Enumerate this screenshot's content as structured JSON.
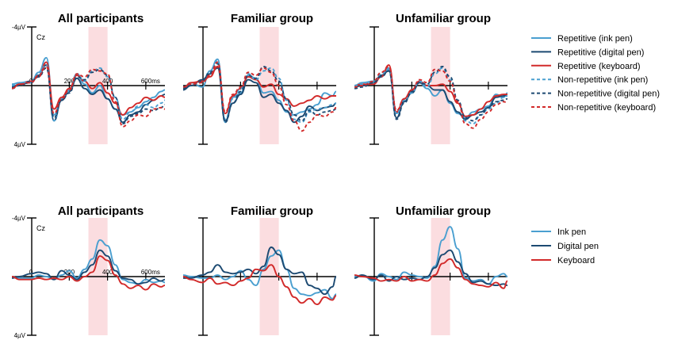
{
  "colors": {
    "ink": "#4a9fd0",
    "digital": "#1c4a72",
    "keyboard": "#d22a2a",
    "window": "#fbdde0"
  },
  "chart_data": [
    {
      "type": "line",
      "row": "top",
      "panels": [
        {
          "title": "All participants",
          "channel": "Cz",
          "tick_labels": [
            "0",
            "200",
            "400",
            "600ms"
          ],
          "ymin_label": "-4µV",
          "ymax_label": "4µV"
        },
        {
          "title": "Familiar group"
        },
        {
          "title": "Unfamiliar group"
        }
      ],
      "x_range_ms": [
        -100,
        700
      ],
      "y_range_uv": [
        -4,
        4
      ],
      "y_orientation": "negative up",
      "analysis_window_ms": [
        300,
        400
      ],
      "legend": [
        "Repetitive (ink pen)",
        "Repetitive (digital pen)",
        "Repetitive (keyboard)",
        "Non-repetitive (ink pen)",
        "Non-repetitive (digital pen)",
        "Non-repetitive (keyboard)"
      ],
      "series_color": [
        "ink",
        "digital",
        "keyboard",
        "ink",
        "digital",
        "keyboard"
      ],
      "series_dashed": [
        false,
        false,
        false,
        true,
        true,
        true
      ],
      "x": [
        -100,
        -60,
        0,
        40,
        80,
        120,
        160,
        200,
        240,
        280,
        320,
        360,
        400,
        440,
        480,
        520,
        560,
        600,
        640,
        680,
        700
      ],
      "panel_series": [
        [
          [
            -0.1,
            -0.2,
            -0.3,
            -0.9,
            -1.9,
            2.0,
            0.9,
            0.3,
            -0.8,
            -0.1,
            0.5,
            0.0,
            0.9,
            1.6,
            2.0,
            1.8,
            1.5,
            1.1,
            0.8,
            0.4,
            0.3
          ],
          [
            0.1,
            -0.1,
            -0.2,
            -0.7,
            -1.4,
            2.4,
            1.0,
            0.4,
            -0.5,
            0.2,
            0.6,
            0.3,
            0.9,
            1.6,
            2.5,
            2.0,
            1.8,
            1.3,
            1.0,
            0.7,
            0.6
          ],
          [
            0.2,
            -0.1,
            -0.3,
            -0.6,
            -1.6,
            1.6,
            0.8,
            0.2,
            -0.7,
            -0.3,
            0.2,
            -0.2,
            0.5,
            1.2,
            2.0,
            1.5,
            1.2,
            0.8,
            1.0,
            0.7,
            0.8
          ],
          [
            0.0,
            -0.2,
            -0.2,
            -0.8,
            -1.4,
            2.4,
            0.9,
            0.4,
            -0.8,
            -0.3,
            -1.0,
            -1.2,
            -0.6,
            0.8,
            2.3,
            1.8,
            1.4,
            1.3,
            1.5,
            1.2,
            1.0
          ],
          [
            0.2,
            0.0,
            -0.3,
            -0.6,
            -1.2,
            2.2,
            1.0,
            0.5,
            -0.6,
            -0.4,
            -0.9,
            -1.1,
            -0.7,
            0.8,
            2.6,
            2.1,
            1.9,
            1.6,
            1.7,
            1.5,
            1.3
          ],
          [
            0.2,
            -0.1,
            -0.2,
            -0.7,
            -1.3,
            1.9,
            0.9,
            0.3,
            -0.8,
            -0.6,
            -1.1,
            -1.0,
            -0.8,
            1.1,
            2.8,
            2.4,
            2.0,
            2.1,
            1.6,
            1.5,
            1.6
          ]
        ],
        [
          [
            0.2,
            -0.2,
            0.1,
            -1.0,
            -1.8,
            2.5,
            0.8,
            0.5,
            -0.7,
            -0.5,
            0.5,
            0.4,
            1.0,
            1.8,
            2.0,
            1.8,
            1.6,
            1.3,
            0.5,
            0.7,
            0.4
          ],
          [
            0.3,
            0.0,
            -0.4,
            -0.8,
            -1.2,
            2.4,
            1.2,
            0.6,
            -0.4,
            -0.2,
            0.8,
            0.6,
            1.2,
            1.7,
            2.5,
            2.1,
            1.4,
            1.7,
            1.5,
            1.4,
            1.2
          ],
          [
            0.2,
            -0.2,
            -0.3,
            -0.6,
            -1.3,
            1.9,
            0.7,
            0.2,
            -0.6,
            -0.4,
            0.1,
            -0.1,
            0.6,
            0.9,
            1.4,
            1.2,
            1.0,
            0.7,
            0.9,
            0.7,
            0.7
          ],
          [
            0.1,
            -0.1,
            -0.2,
            -1.0,
            -1.7,
            2.3,
            0.9,
            0.2,
            -0.8,
            -0.4,
            -1.0,
            -1.2,
            -0.5,
            1.0,
            2.3,
            2.5,
            1.8,
            1.6,
            1.5,
            1.3,
            1.2
          ],
          [
            0.2,
            0.0,
            -0.3,
            -0.9,
            -1.5,
            2.5,
            1.2,
            0.4,
            -0.7,
            -0.5,
            -1.3,
            -1.0,
            -0.3,
            0.9,
            2.0,
            2.4,
            1.7,
            2.0,
            1.8,
            1.7,
            1.6
          ],
          [
            0.1,
            -0.1,
            -0.2,
            -0.7,
            -1.6,
            1.8,
            0.6,
            0.1,
            -0.9,
            -0.7,
            -1.2,
            -0.9,
            0.0,
            1.3,
            2.4,
            3.1,
            2.5,
            2.0,
            2.1,
            1.8,
            1.5
          ]
        ],
        [
          [
            0.0,
            -0.2,
            -0.3,
            -0.6,
            -1.2,
            1.9,
            0.9,
            0.4,
            -0.2,
            0.2,
            0.7,
            0.3,
            1.2,
            1.9,
            2.2,
            1.8,
            1.6,
            1.4,
            0.6,
            0.8,
            0.5
          ],
          [
            0.1,
            0.0,
            -0.2,
            -0.7,
            -1.0,
            2.2,
            1.1,
            0.5,
            -0.2,
            0.0,
            0.3,
            0.3,
            1.1,
            1.8,
            2.3,
            2.0,
            1.8,
            1.5,
            0.8,
            0.7,
            0.6
          ],
          [
            0.0,
            -0.1,
            -0.1,
            -0.6,
            -1.4,
            1.8,
            0.9,
            0.3,
            -0.3,
            0.0,
            0.0,
            -0.1,
            0.4,
            1.2,
            2.1,
            2.0,
            1.6,
            1.1,
            0.7,
            0.6,
            0.6
          ],
          [
            0.0,
            -0.1,
            -0.2,
            -0.8,
            -1.1,
            1.9,
            1.0,
            0.5,
            -0.3,
            0.1,
            -0.8,
            -1.2,
            -0.4,
            1.0,
            2.4,
            2.6,
            2.0,
            1.6,
            1.2,
            0.8,
            0.7
          ],
          [
            0.2,
            0.1,
            -0.2,
            -0.6,
            -1.0,
            2.3,
            1.2,
            0.4,
            -0.2,
            -0.1,
            -0.9,
            -1.3,
            -0.6,
            1.0,
            2.2,
            2.4,
            2.0,
            1.5,
            1.1,
            1.0,
            0.9
          ],
          [
            0.1,
            0.0,
            -0.3,
            -0.9,
            -1.3,
            1.7,
            0.9,
            0.3,
            -0.4,
            -0.2,
            -1.1,
            -1.0,
            -0.3,
            1.1,
            2.6,
            2.9,
            2.3,
            1.8,
            1.3,
            1.1,
            1.2
          ]
        ]
      ]
    },
    {
      "type": "line",
      "row": "bottom",
      "panels": [
        {
          "title": "All participants",
          "channel": "Cz",
          "tick_labels": [
            "0",
            "200",
            "400",
            "600ms"
          ],
          "ymin_label": "-4µV",
          "ymax_label": "4µV"
        },
        {
          "title": "Familiar group"
        },
        {
          "title": "Unfamiliar group"
        }
      ],
      "x_range_ms": [
        -100,
        700
      ],
      "y_range_uv": [
        -4,
        4
      ],
      "y_orientation": "negative up",
      "analysis_window_ms": [
        300,
        400
      ],
      "legend": [
        "Ink pen",
        "Digital pen",
        "Keyboard"
      ],
      "series_color": [
        "ink",
        "digital",
        "keyboard"
      ],
      "series_dashed": [
        false,
        false,
        false
      ],
      "x": [
        -100,
        -60,
        0,
        40,
        80,
        120,
        160,
        200,
        240,
        280,
        320,
        360,
        400,
        440,
        480,
        520,
        560,
        600,
        640,
        680,
        700
      ],
      "panel_series": [
        [
          [
            0.0,
            0.1,
            0.1,
            -0.1,
            0.0,
            0.2,
            -0.1,
            -0.4,
            0.1,
            -0.5,
            -1.2,
            -2.5,
            -2.1,
            -0.8,
            0.2,
            0.4,
            0.5,
            0.2,
            0.4,
            0.3,
            0.4
          ],
          [
            0.1,
            0.0,
            -0.2,
            -0.3,
            -0.2,
            0.2,
            -0.4,
            -0.1,
            0.2,
            -0.3,
            -0.8,
            -1.8,
            -1.4,
            -0.4,
            0.1,
            0.2,
            0.5,
            0.4,
            0.1,
            0.3,
            0.2
          ],
          [
            0.0,
            0.2,
            0.2,
            0.1,
            0.2,
            0.1,
            0.2,
            0.0,
            0.3,
            0.0,
            -0.3,
            -1.4,
            -1.1,
            -0.1,
            0.5,
            0.8,
            0.6,
            0.9,
            0.5,
            0.7,
            0.6
          ]
        ],
        [
          [
            -0.1,
            0.0,
            0.1,
            0.1,
            -0.1,
            0.2,
            0.0,
            -0.4,
            0.2,
            0.6,
            -0.5,
            -1.4,
            -1.8,
            -0.5,
            0.8,
            1.2,
            1.3,
            1.1,
            0.9,
            1.5,
            1.2
          ],
          [
            0.1,
            0.1,
            -0.1,
            -0.3,
            -0.8,
            -0.3,
            -0.2,
            -0.3,
            -0.5,
            -0.2,
            -0.7,
            -2.0,
            -1.5,
            -0.5,
            -0.2,
            -0.3,
            0.6,
            0.8,
            1.2,
            0.7,
            0.0
          ],
          [
            0.0,
            0.2,
            0.4,
            0.1,
            0.5,
            0.4,
            0.6,
            0.3,
            0.1,
            -0.5,
            -0.4,
            -0.8,
            0.0,
            0.7,
            1.4,
            1.8,
            1.5,
            1.9,
            1.4,
            1.6,
            1.3
          ]
        ],
        [
          [
            0.0,
            -0.1,
            0.3,
            -0.2,
            0.0,
            0.2,
            -0.3,
            -0.1,
            0.0,
            0.1,
            -0.7,
            -2.5,
            -3.4,
            -1.9,
            0.1,
            0.3,
            0.2,
            0.5,
            0.0,
            -0.2,
            0.0
          ],
          [
            0.1,
            -0.1,
            0.2,
            -0.1,
            0.3,
            0.0,
            0.2,
            0.1,
            0.2,
            0.0,
            -0.6,
            -1.5,
            -1.8,
            -1.0,
            -0.2,
            0.4,
            0.3,
            0.5,
            0.6,
            0.5,
            0.6
          ],
          [
            -0.1,
            0.0,
            0.1,
            0.3,
            0.2,
            0.3,
            0.0,
            0.3,
            0.2,
            0.3,
            -0.1,
            -0.9,
            -1.2,
            -0.6,
            0.2,
            0.5,
            0.6,
            0.7,
            0.4,
            0.8,
            0.3
          ]
        ]
      ]
    }
  ]
}
